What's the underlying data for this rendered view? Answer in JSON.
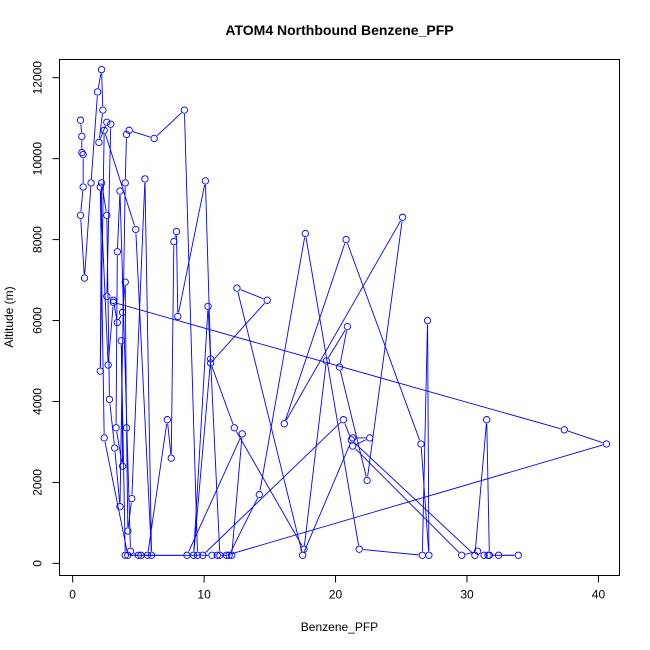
{
  "chart_data": {
    "type": "line",
    "title": "ATOM4 Northbound Benzene_PFP",
    "xlabel": "Benzene_PFP",
    "ylabel": "Altitude (m)",
    "xlim": [
      -1.0,
      41.6
    ],
    "ylim": [
      -300,
      12450
    ],
    "x_ticks": [
      0,
      10,
      20,
      30,
      40
    ],
    "y_ticks": [
      0,
      2000,
      4000,
      6000,
      8000,
      10000,
      12000
    ],
    "x_tick_labels": [
      "0",
      "10",
      "20",
      "30",
      "40"
    ],
    "y_tick_labels": [
      "0",
      "2000",
      "4000",
      "6000",
      "8000",
      "10000",
      "12000"
    ],
    "grid": false,
    "series_color": "#0000ff",
    "marker": "open-circle",
    "series": [
      {
        "x": [
          0.6,
          0.7,
          0.7,
          0.8,
          0.8,
          0.6,
          0.9,
          1.4,
          1.9,
          2.2,
          2.3,
          2.0,
          2.6,
          2.9,
          2.6,
          3.1,
          3.4,
          3.8,
          4.0,
          4.1,
          4.2,
          4.5,
          5.5,
          6.0,
          4.8,
          2.4,
          2.1,
          2.2,
          2.6,
          2.8,
          3.2,
          3.6,
          4.0,
          4.1,
          4.3,
          6.2,
          8.5,
          9.5,
          10.6,
          11.0,
          12.1,
          12.9,
          8.7,
          5.2,
          4.0,
          3.7,
          3.8,
          3.3,
          3.4,
          3.6,
          4.4,
          5.0,
          5.7,
          7.2,
          7.5,
          7.7,
          7.9,
          8.0,
          10.1,
          10.5,
          9.2,
          10.3,
          11.2,
          11.9,
          14.2,
          17.7,
          21.8,
          26.6,
          27.0,
          27.1,
          26.5,
          20.8,
          16.1,
          25.1,
          22.4,
          20.3,
          20.9,
          19.3,
          17.6,
          12.3,
          10.5,
          14.8,
          12.5,
          17.5,
          21.3,
          22.6,
          21.3,
          29.6,
          30.8,
          31.3,
          31.6,
          32.4,
          33.9,
          31.7,
          31.5,
          30.6,
          21.2,
          20.6,
          9.9,
          4.2,
          2.4,
          2.1,
          2.7,
          3.1,
          37.4,
          40.6,
          11.7
        ],
        "y": [
          10950,
          10550,
          10150,
          10100,
          9300,
          8600,
          7050,
          9400,
          11650,
          12200,
          11200,
          10400,
          10900,
          10850,
          6600,
          6500,
          5950,
          6200,
          6950,
          3350,
          800,
          1600,
          9500,
          200,
          8250,
          10700,
          4750,
          9400,
          8600,
          4050,
          2850,
          1400,
          9400,
          10600,
          10700,
          10500,
          11200,
          200,
          200,
          200,
          200,
          3200,
          200,
          200,
          200,
          5500,
          2400,
          3350,
          7700,
          9200,
          300,
          200,
          200,
          3550,
          2600,
          7950,
          8200,
          6100,
          9450,
          5050,
          200,
          6350,
          200,
          200,
          1700,
          8150,
          350,
          200,
          6000,
          200,
          2950,
          8000,
          3450,
          8550,
          2050,
          4850,
          5850,
          5000,
          350,
          3350,
          4950,
          6500,
          6800,
          200,
          3100,
          3100,
          2900,
          200,
          300,
          200,
          200,
          200,
          200,
          200,
          3550,
          200,
          3050,
          3550,
          200,
          200,
          3100,
          9300,
          4900,
          6450,
          3300,
          2950,
          200
        ]
      }
    ]
  }
}
